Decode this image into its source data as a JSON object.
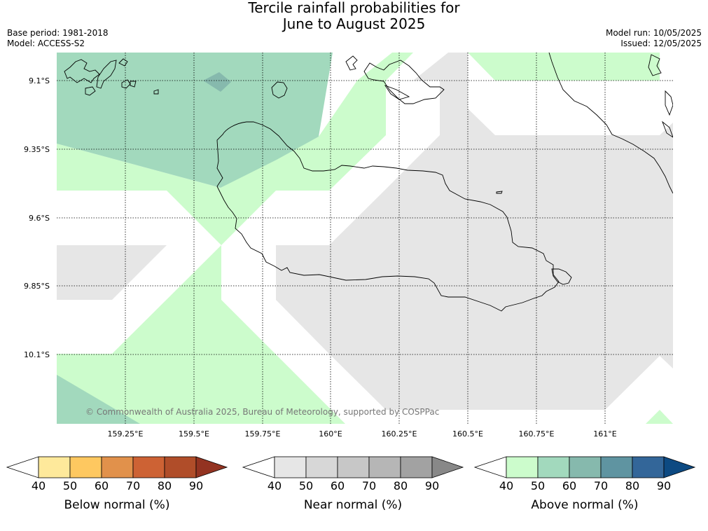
{
  "header": {
    "title_line1": "Tercile rainfall probabilities for",
    "title_line2": "June to August 2025",
    "base_period": "Base period: 1981-2018",
    "model": "Model: ACCESS-S2",
    "model_run": "Model run: 10/05/2025",
    "issued": "Issued: 12/05/2025"
  },
  "map": {
    "lat_labels": [
      "9.1°S",
      "9.35°S",
      "9.6°S",
      "9.85°S",
      "10.1°S"
    ],
    "lon_labels": [
      "159.25°E",
      "159.5°E",
      "159.75°E",
      "160°E",
      "160.25°E",
      "160.5°E",
      "160.75°E",
      "161°E"
    ],
    "copyright": "© Commonwealth of Australia 2025, Bureau of Meteorology, supported by COSPPac"
  },
  "legends": [
    {
      "label": "Below normal (%)",
      "ticks": [
        "40",
        "50",
        "60",
        "70",
        "80",
        "90"
      ],
      "colors": [
        "#ffffff",
        "#fee99b",
        "#fec860",
        "#e1914b",
        "#cd6234",
        "#b04d29",
        "#933321"
      ]
    },
    {
      "label": "Near normal (%)",
      "ticks": [
        "40",
        "50",
        "60",
        "70",
        "80",
        "90"
      ],
      "colors": [
        "#ffffff",
        "#e6e6e6",
        "#d7d7d7",
        "#c7c7c7",
        "#b6b6b6",
        "#a2a2a2",
        "#888888"
      ]
    },
    {
      "label": "Above normal (%)",
      "ticks": [
        "40",
        "50",
        "60",
        "70",
        "80",
        "90"
      ],
      "colors": [
        "#ffffff",
        "#ccfccc",
        "#a2d9bd",
        "#86b9ad",
        "#5f94a1",
        "#336699",
        "#0d4a82"
      ]
    }
  ]
}
